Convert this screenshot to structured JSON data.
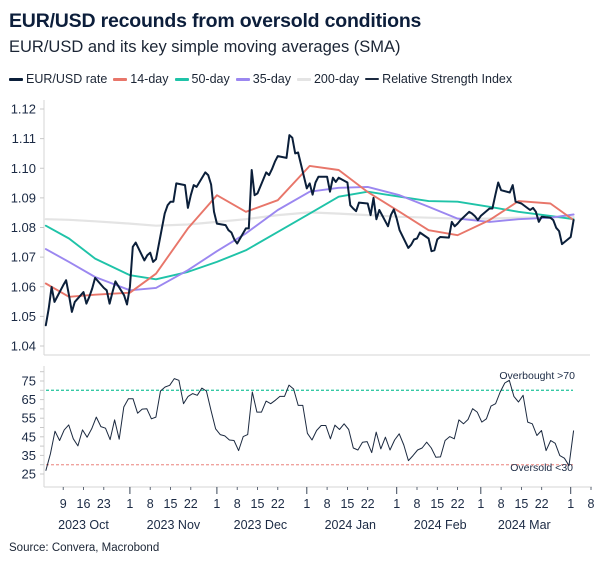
{
  "title": "EUR/USD recounds from oversold conditions",
  "subtitle": "EUR/USD and its key simple moving averages (SMA)",
  "source": "Source: Convera, Macrobond",
  "legend": [
    {
      "label": "EUR/USD rate",
      "color": "#0b1f3a"
    },
    {
      "label": "14-day",
      "color": "#e8766a"
    },
    {
      "label": "50-day",
      "color": "#1fc3a8"
    },
    {
      "label": "35-day",
      "color": "#9b87f0"
    },
    {
      "label": "200-day",
      "color": "#e4e4e4"
    },
    {
      "label": "Relative Strength Index",
      "color": "#1c2a40"
    }
  ],
  "chart_data": [
    {
      "type": "line",
      "panel": "price",
      "ylim": [
        1.04,
        1.12
      ],
      "y_ticks": [
        "1.04",
        "1.05",
        "1.06",
        "1.07",
        "1.08",
        "1.09",
        "1.10",
        "1.11",
        "1.12"
      ],
      "grid": false,
      "legend_placement": "top",
      "dates": [
        "2023-10-03",
        "2023-10-04",
        "2023-10-05",
        "2023-10-06",
        "2023-10-09",
        "2023-10-10",
        "2023-10-11",
        "2023-10-12",
        "2023-10-13",
        "2023-10-16",
        "2023-10-17",
        "2023-10-18",
        "2023-10-19",
        "2023-10-20",
        "2023-10-23",
        "2023-10-24",
        "2023-10-25",
        "2023-10-26",
        "2023-10-27",
        "2023-10-30",
        "2023-10-31",
        "2023-11-01",
        "2023-11-02",
        "2023-11-03",
        "2023-11-06",
        "2023-11-07",
        "2023-11-08",
        "2023-11-09",
        "2023-11-10",
        "2023-11-13",
        "2023-11-14",
        "2023-11-15",
        "2023-11-16",
        "2023-11-17",
        "2023-11-20",
        "2023-11-21",
        "2023-11-22",
        "2023-11-23",
        "2023-11-24",
        "2023-11-27",
        "2023-11-28",
        "2023-11-29",
        "2023-11-30",
        "2023-12-01",
        "2023-12-04",
        "2023-12-05",
        "2023-12-06",
        "2023-12-07",
        "2023-12-08",
        "2023-12-11",
        "2023-12-12",
        "2023-12-13",
        "2023-12-14",
        "2023-12-15",
        "2023-12-18",
        "2023-12-19",
        "2023-12-20",
        "2023-12-21",
        "2023-12-22",
        "2023-12-25",
        "2023-12-26",
        "2023-12-27",
        "2023-12-28",
        "2023-12-29",
        "2024-01-01",
        "2024-01-02",
        "2024-01-03",
        "2024-01-04",
        "2024-01-05",
        "2024-01-08",
        "2024-01-09",
        "2024-01-10",
        "2024-01-11",
        "2024-01-12",
        "2024-01-15",
        "2024-01-16",
        "2024-01-17",
        "2024-01-18",
        "2024-01-19",
        "2024-01-22",
        "2024-01-23",
        "2024-01-24",
        "2024-01-25",
        "2024-01-26",
        "2024-01-29",
        "2024-01-30",
        "2024-01-31",
        "2024-02-01",
        "2024-02-02",
        "2024-02-05",
        "2024-02-06",
        "2024-02-07",
        "2024-02-08",
        "2024-02-09",
        "2024-02-12",
        "2024-02-13",
        "2024-02-14",
        "2024-02-15",
        "2024-02-16",
        "2024-02-19",
        "2024-02-20",
        "2024-02-21",
        "2024-02-22",
        "2024-02-23",
        "2024-02-26",
        "2024-02-27",
        "2024-02-28",
        "2024-02-29",
        "2024-03-01",
        "2024-03-04",
        "2024-03-05",
        "2024-03-06",
        "2024-03-07",
        "2024-03-08",
        "2024-03-11",
        "2024-03-12",
        "2024-03-13",
        "2024-03-14",
        "2024-03-15",
        "2024-03-18",
        "2024-03-19",
        "2024-03-20",
        "2024-03-21",
        "2024-03-22",
        "2024-03-25",
        "2024-03-26",
        "2024-03-27",
        "2024-03-28",
        "2024-03-29",
        "2024-04-01",
        "2024-04-02"
      ],
      "series": [
        {
          "name": "EUR/USD rate",
          "color": "#0b1f3a",
          "values": [
            1.047,
            1.0526,
            1.0599,
            1.0549,
            1.0605,
            1.0622,
            1.0571,
            1.0515,
            1.0549,
            1.0582,
            1.0543,
            1.0566,
            1.0594,
            1.063,
            1.0596,
            1.0588,
            1.0543,
            1.0582,
            1.0618,
            1.0571,
            1.054,
            1.0599,
            1.0735,
            1.0749,
            1.0689,
            1.0706,
            1.0715,
            1.0684,
            1.0693,
            1.0847,
            1.0875,
            1.0887,
            1.0887,
            1.0949,
            1.0943,
            1.0866,
            1.0909,
            1.0943,
            1.0937,
            1.0986,
            1.0977,
            1.0945,
            1.0853,
            1.0813,
            1.0808,
            1.0791,
            1.0783,
            1.076,
            1.0746,
            1.0797,
            1.0797,
            1.0994,
            1.0909,
            1.0915,
            1.0986,
            1.0977,
            1.0997,
            1.1022,
            1.1041,
            1.1035,
            1.1112,
            1.1103,
            1.105,
            1.1053,
            1.0932,
            1.0949,
            1.0911,
            1.0952,
            1.0971,
            1.0971,
            1.0921,
            1.0968,
            1.0954,
            1.0968,
            1.0952,
            1.0875,
            1.0864,
            1.0855,
            1.0884,
            1.0881,
            1.0842,
            1.09,
            1.0828,
            1.0859,
            1.0804,
            1.0842,
            1.0861,
            1.083,
            1.0791,
            1.0731,
            1.0742,
            1.076,
            1.0763,
            1.0783,
            1.0763,
            1.072,
            1.0723,
            1.076,
            1.0768,
            1.0766,
            1.0819,
            1.0804,
            1.0813,
            1.0825,
            1.0853,
            1.0847,
            1.0838,
            1.0825,
            1.0839,
            1.0864,
            1.0864,
            1.0909,
            1.0952,
            1.0926,
            1.0918,
            1.0943,
            1.0887,
            1.0884,
            1.0881,
            1.0859,
            1.0866,
            1.0853,
            1.0819,
            1.0836,
            1.0833,
            1.0825,
            1.0799,
            1.0788,
            1.0744,
            1.0768,
            1.0825
          ]
        },
        {
          "name": "14-day",
          "color": "#e8766a",
          "points": [
            [
              "2023-10-03",
              1.0611
            ],
            [
              "2023-10-11",
              1.0566
            ],
            [
              "2023-10-20",
              1.0573
            ],
            [
              "2023-11-01",
              1.058
            ],
            [
              "2023-11-10",
              1.0644
            ],
            [
              "2023-11-21",
              1.0797
            ],
            [
              "2023-12-01",
              1.0909
            ],
            [
              "2023-12-11",
              1.0853
            ],
            [
              "2023-12-22",
              1.0892
            ],
            [
              "2024-01-02",
              1.1008
            ],
            [
              "2024-01-12",
              1.0994
            ],
            [
              "2024-01-22",
              1.092
            ],
            [
              "2024-02-02",
              1.0853
            ],
            [
              "2024-02-12",
              1.0791
            ],
            [
              "2024-02-22",
              1.0774
            ],
            [
              "2024-03-04",
              1.0825
            ],
            [
              "2024-03-14",
              1.0889
            ],
            [
              "2024-03-25",
              1.0881
            ],
            [
              "2024-04-02",
              1.0825
            ]
          ]
        },
        {
          "name": "50-day",
          "color": "#1fc3a8",
          "points": [
            [
              "2023-10-03",
              1.0806
            ],
            [
              "2023-10-11",
              1.0763
            ],
            [
              "2023-10-20",
              1.0695
            ],
            [
              "2023-11-01",
              1.0639
            ],
            [
              "2023-11-10",
              1.0625
            ],
            [
              "2023-11-21",
              1.065
            ],
            [
              "2023-12-01",
              1.0684
            ],
            [
              "2023-12-11",
              1.0723
            ],
            [
              "2023-12-22",
              1.0785
            ],
            [
              "2024-01-02",
              1.0847
            ],
            [
              "2024-01-12",
              1.0904
            ],
            [
              "2024-01-22",
              1.0921
            ],
            [
              "2024-02-02",
              1.0904
            ],
            [
              "2024-02-12",
              1.0889
            ],
            [
              "2024-02-22",
              1.0887
            ],
            [
              "2024-03-04",
              1.087
            ],
            [
              "2024-03-14",
              1.0853
            ],
            [
              "2024-03-25",
              1.0839
            ],
            [
              "2024-04-02",
              1.0828
            ]
          ]
        },
        {
          "name": "35-day",
          "color": "#9b87f0",
          "points": [
            [
              "2023-10-03",
              1.0727
            ],
            [
              "2023-10-11",
              1.0684
            ],
            [
              "2023-10-20",
              1.0633
            ],
            [
              "2023-11-01",
              1.0588
            ],
            [
              "2023-11-10",
              1.0596
            ],
            [
              "2023-11-21",
              1.0656
            ],
            [
              "2023-12-01",
              1.072
            ],
            [
              "2023-12-11",
              1.078
            ],
            [
              "2023-12-22",
              1.0859
            ],
            [
              "2024-01-02",
              1.0921
            ],
            [
              "2024-01-12",
              1.0934
            ],
            [
              "2024-01-22",
              1.0937
            ],
            [
              "2024-02-02",
              1.0909
            ],
            [
              "2024-02-12",
              1.087
            ],
            [
              "2024-02-22",
              1.083
            ],
            [
              "2024-03-04",
              1.0819
            ],
            [
              "2024-03-14",
              1.0828
            ],
            [
              "2024-03-25",
              1.0833
            ],
            [
              "2024-04-02",
              1.0844
            ]
          ]
        },
        {
          "name": "200-day",
          "color": "#e4e4e4",
          "points": [
            [
              "2023-10-03",
              1.0828
            ],
            [
              "2023-10-11",
              1.0826
            ],
            [
              "2023-10-20",
              1.0821
            ],
            [
              "2023-11-01",
              1.0813
            ],
            [
              "2023-11-10",
              1.0806
            ],
            [
              "2023-11-21",
              1.081
            ],
            [
              "2023-12-01",
              1.0819
            ],
            [
              "2023-12-11",
              1.0828
            ],
            [
              "2023-12-22",
              1.0842
            ],
            [
              "2024-01-02",
              1.0851
            ],
            [
              "2024-01-12",
              1.0847
            ],
            [
              "2024-01-22",
              1.0842
            ],
            [
              "2024-02-02",
              1.0836
            ],
            [
              "2024-02-12",
              1.0833
            ],
            [
              "2024-02-22",
              1.083
            ],
            [
              "2024-03-04",
              1.083
            ],
            [
              "2024-03-14",
              1.0833
            ],
            [
              "2024-03-25",
              1.0834
            ],
            [
              "2024-04-02",
              1.0835
            ]
          ]
        }
      ]
    },
    {
      "type": "line",
      "panel": "rsi",
      "ylim": [
        25,
        80
      ],
      "y_ticks": [
        "25",
        "35",
        "45",
        "55",
        "65",
        "75"
      ],
      "series": [
        {
          "name": "Relative Strength Index",
          "color": "#1c2a40",
          "start": "2023-10-03",
          "end": "2024-04-02",
          "values": [
            26.8,
            35.8,
            48.0,
            43.0,
            48.7,
            51.4,
            43.9,
            40.1,
            48.7,
            44.8,
            49.3,
            55.6,
            50.5,
            49.6,
            43.5,
            54.1,
            43.7,
            61.0,
            65.5,
            65.5,
            57.7,
            59.9,
            60.1,
            54.7,
            55.6,
            69.6,
            71.8,
            72.7,
            76.3,
            75.4,
            62.8,
            66.7,
            68.2,
            67.3,
            71.2,
            69.6,
            59.2,
            49.3,
            46.2,
            45.5,
            43.3,
            43.0,
            37.6,
            45.1,
            46.2,
            69.1,
            58.3,
            58.3,
            64.2,
            62.8,
            64.6,
            66.7,
            66.7,
            72.8,
            70.7,
            61.9,
            61.9,
            46.9,
            43.3,
            48.4,
            51.1,
            51.1,
            43.9,
            51.3,
            48.9,
            52.0,
            48.9,
            39.0,
            37.9,
            42.1,
            42.4,
            36.5,
            47.5,
            38.5,
            44.8,
            37.9,
            43.3,
            46.6,
            40.6,
            32.2,
            34.9,
            37.9,
            39.0,
            42.1,
            39.0,
            34.0,
            34.2,
            43.0,
            45.1,
            43.9,
            54.1,
            52.0,
            54.3,
            60.1,
            58.3,
            52.9,
            54.7,
            61.5,
            62.8,
            69.1,
            73.9,
            75.4,
            66.7,
            63.7,
            67.3,
            52.9,
            52.0,
            45.7,
            48.4,
            37.6,
            43.0,
            41.5,
            34.9,
            33.5,
            29.5,
            48.4
          ]
        }
      ],
      "thresholds": [
        {
          "value": 70,
          "label": "Overbought >70",
          "color": "#35c9a5"
        },
        {
          "value": 30,
          "label": "Oversold <30",
          "color": "#f0a39e"
        }
      ]
    }
  ],
  "x_axis": {
    "day_ticks": [
      {
        "date": "2023-10-09",
        "label": "9"
      },
      {
        "date": "2023-10-16",
        "label": "16"
      },
      {
        "date": "2023-10-23",
        "label": "23"
      },
      {
        "date": "2023-11-01",
        "label": "1"
      },
      {
        "date": "2023-11-08",
        "label": "8"
      },
      {
        "date": "2023-11-15",
        "label": "15"
      },
      {
        "date": "2023-11-22",
        "label": "22"
      },
      {
        "date": "2023-12-01",
        "label": "1"
      },
      {
        "date": "2023-12-08",
        "label": "8"
      },
      {
        "date": "2023-12-15",
        "label": "15"
      },
      {
        "date": "2023-12-22",
        "label": "22"
      },
      {
        "date": "2024-01-01",
        "label": "1"
      },
      {
        "date": "2024-01-08",
        "label": "8"
      },
      {
        "date": "2024-01-15",
        "label": "15"
      },
      {
        "date": "2024-01-22",
        "label": "22"
      },
      {
        "date": "2024-02-01",
        "label": "1"
      },
      {
        "date": "2024-02-08",
        "label": "8"
      },
      {
        "date": "2024-02-15",
        "label": "15"
      },
      {
        "date": "2024-02-22",
        "label": "22"
      },
      {
        "date": "2024-03-01",
        "label": "1"
      },
      {
        "date": "2024-03-08",
        "label": "8"
      },
      {
        "date": "2024-03-15",
        "label": "15"
      },
      {
        "date": "2024-03-22",
        "label": "22"
      },
      {
        "date": "2024-04-01",
        "label": "1"
      },
      {
        "date": "2024-04-08",
        "label": "8"
      }
    ],
    "months": [
      {
        "month": "2023-10",
        "label": "2023 Oct"
      },
      {
        "month": "2023-11",
        "label": "2023 Nov"
      },
      {
        "month": "2023-12",
        "label": "2023 Dec"
      },
      {
        "month": "2024-01",
        "label": "2024 Jan"
      },
      {
        "month": "2024-02",
        "label": "2024 Feb"
      },
      {
        "month": "2024-03",
        "label": "2024 Mar"
      }
    ]
  }
}
